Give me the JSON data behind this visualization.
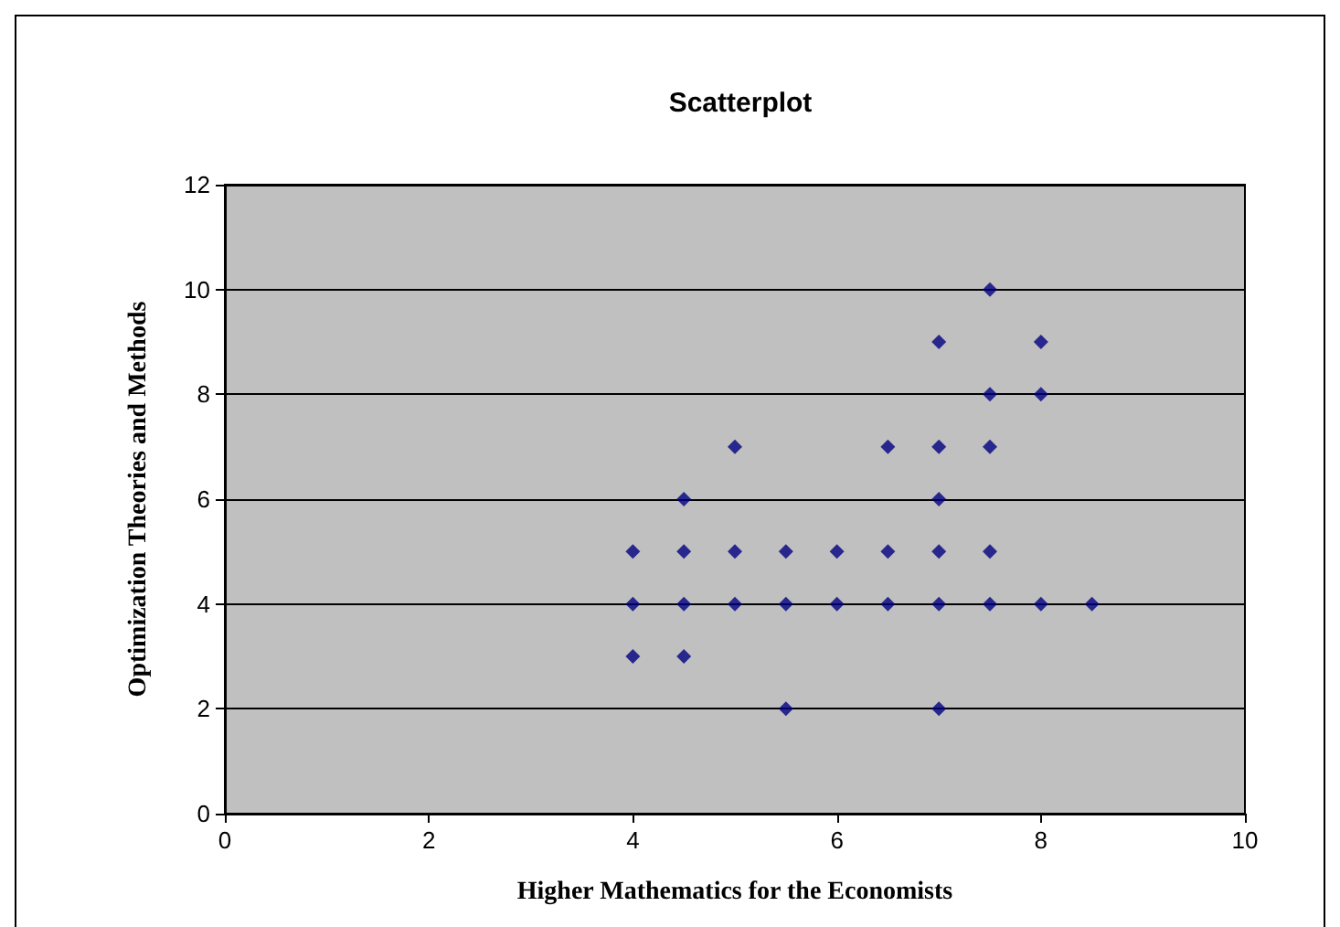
{
  "chart_data": {
    "type": "scatter",
    "title": "Scatterplot",
    "xlabel": "Higher Mathematics for the Economists",
    "ylabel": "Optimization Theories and Methods",
    "series": [
      {
        "color": "#000080",
        "x": [
          4,
          4,
          4,
          4.5,
          4.5,
          4.5,
          4.5,
          5,
          5,
          5,
          5.5,
          5.5,
          5.5,
          6,
          6,
          6.5,
          6.5,
          6.5,
          7,
          7,
          7,
          7,
          7,
          7,
          7.5,
          7.5,
          7.5,
          7.5,
          7.5,
          8,
          8,
          8,
          8.5
        ],
        "values": [
          5,
          4,
          3,
          6,
          5,
          4,
          3,
          7,
          5,
          4,
          5,
          4,
          2,
          5,
          4,
          7,
          5,
          4,
          9,
          7,
          6,
          5,
          4,
          2,
          10,
          8,
          7,
          5,
          4,
          9,
          8,
          4,
          4
        ]
      }
    ],
    "xlim": [
      0,
      10
    ],
    "xticks": [
      0,
      2,
      4,
      6,
      8,
      10
    ],
    "ylim": [
      0,
      12
    ],
    "yticks": [
      0,
      2,
      4,
      6,
      8,
      10,
      12
    ],
    "grid": "y",
    "marker": "diamond"
  }
}
